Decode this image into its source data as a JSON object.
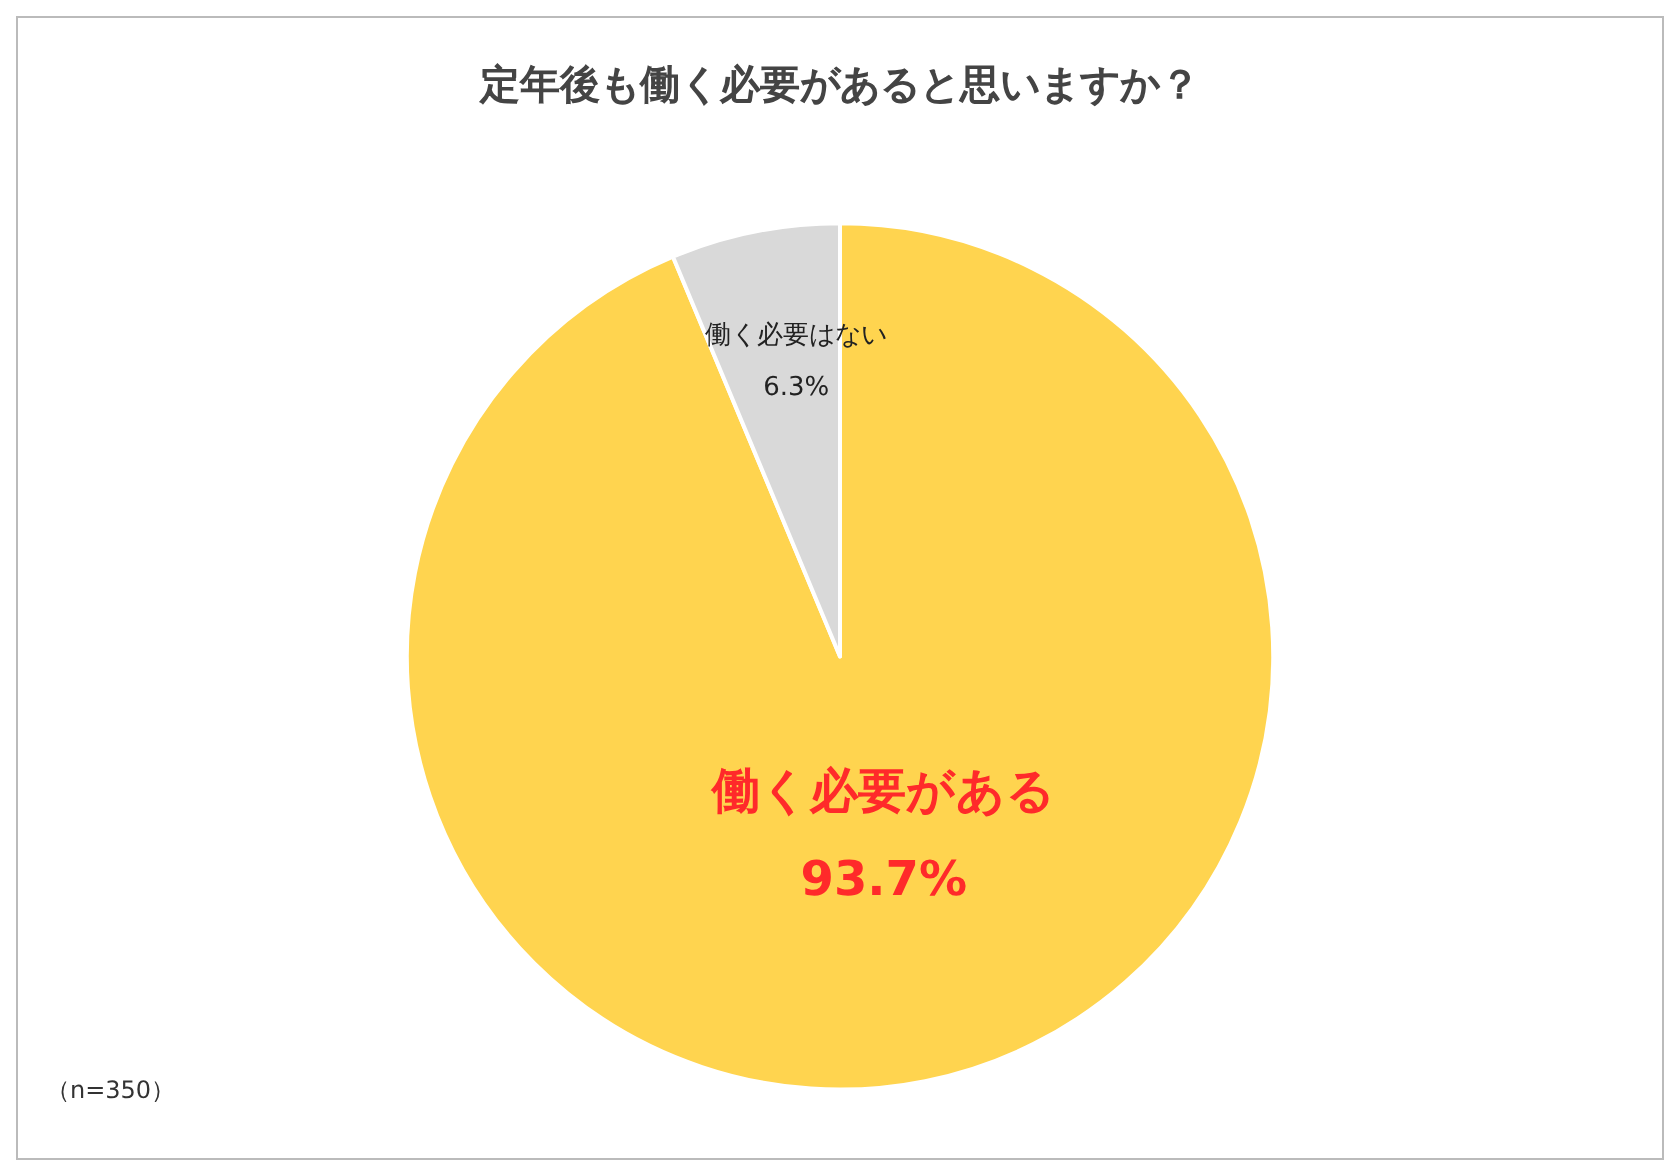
{
  "chart_data": {
    "type": "pie",
    "title": "定年後も働く必要があると思いますか？",
    "categories": [
      "働く必要がある",
      "働く必要はない"
    ],
    "values": [
      93.7,
      6.3
    ],
    "colors": [
      "#ffd44f",
      "#d9d9d9"
    ],
    "value_labels": [
      "93.7%",
      "6.3%"
    ],
    "legend": false,
    "annotations": [
      "（n=350）"
    ]
  }
}
